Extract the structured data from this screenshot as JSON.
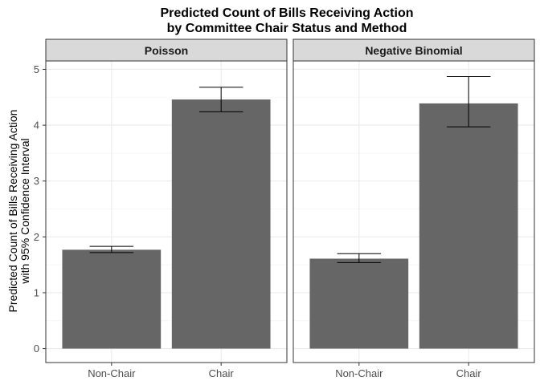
{
  "chart_data": {
    "type": "bar",
    "title": [
      "Predicted Count of Bills Receiving Action",
      "by Committee Chair Status and Method"
    ],
    "ylabel": [
      "Predicted Count of Bills Receiving Action",
      "with 95% Confidence Interval"
    ],
    "xlabel": "",
    "categories": [
      "Non-Chair",
      "Chair"
    ],
    "ylim": [
      -0.25,
      5.15
    ],
    "yticks": [
      0,
      1,
      2,
      3,
      4,
      5
    ],
    "grid": true,
    "bar_color": "#666666",
    "panels": [
      {
        "name": "Poisson",
        "values": [
          1.77,
          4.46
        ],
        "ci_low": [
          1.72,
          4.24
        ],
        "ci_high": [
          1.83,
          4.68
        ]
      },
      {
        "name": "Negative Binomial",
        "values": [
          1.61,
          4.39
        ],
        "ci_low": [
          1.54,
          3.97
        ],
        "ci_high": [
          1.7,
          4.87
        ]
      }
    ]
  }
}
